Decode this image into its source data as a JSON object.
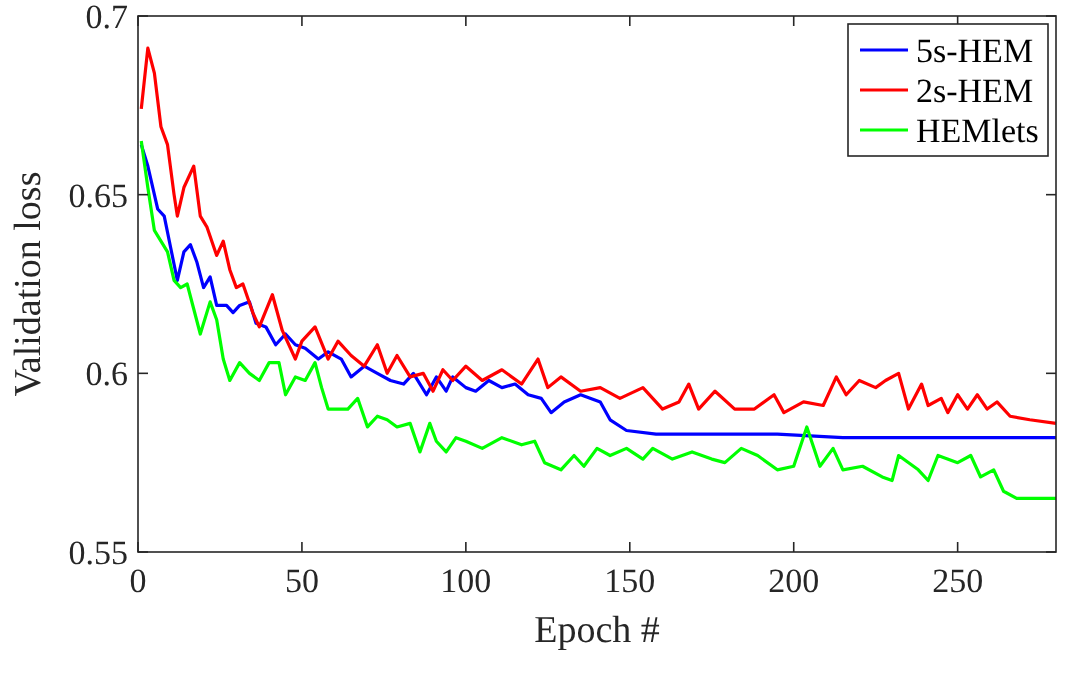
{
  "chart_data": {
    "type": "line",
    "xlabel": "Epoch #",
    "ylabel": "Validation loss",
    "xlim": [
      0,
      280
    ],
    "ylim": [
      0.55,
      0.7
    ],
    "xticks": [
      0,
      50,
      100,
      150,
      200,
      250
    ],
    "yticks": [
      0.55,
      0.6,
      0.65,
      0.7
    ],
    "legend": "top right",
    "grid": false,
    "line_style": "solid",
    "marker": "none",
    "series": [
      {
        "name": "5s-HEM",
        "color": "#0000ff",
        "x": [
          1,
          3,
          6,
          8,
          10,
          12,
          14,
          16,
          18,
          20,
          22,
          24,
          27,
          29,
          31,
          34,
          36,
          39,
          42,
          45,
          48,
          51,
          55,
          58,
          62,
          65,
          69,
          73,
          77,
          81,
          84,
          88,
          91,
          94,
          96,
          100,
          103,
          107,
          111,
          115,
          119,
          123,
          126,
          130,
          135,
          141,
          144,
          149,
          158,
          166,
          178,
          184,
          195,
          215,
          236,
          260,
          280
        ],
        "values": [
          0.664,
          0.658,
          0.646,
          0.644,
          0.635,
          0.626,
          0.634,
          0.636,
          0.631,
          0.624,
          0.627,
          0.619,
          0.619,
          0.617,
          0.619,
          0.62,
          0.614,
          0.613,
          0.608,
          0.611,
          0.608,
          0.607,
          0.604,
          0.606,
          0.604,
          0.599,
          0.602,
          0.6,
          0.598,
          0.597,
          0.6,
          0.594,
          0.599,
          0.595,
          0.599,
          0.596,
          0.595,
          0.598,
          0.596,
          0.597,
          0.594,
          0.593,
          0.589,
          0.592,
          0.594,
          0.592,
          0.587,
          0.584,
          0.583,
          0.583,
          0.583,
          0.583,
          0.583,
          0.582,
          0.582,
          0.582,
          0.582
        ]
      },
      {
        "name": "2s-HEM",
        "color": "#ff0000",
        "x": [
          1,
          3,
          5,
          7,
          9,
          11,
          12,
          14,
          17,
          19,
          21,
          24,
          26,
          28,
          30,
          32,
          35,
          37,
          41,
          44,
          48,
          50,
          54,
          58,
          61,
          65,
          69,
          73,
          76,
          79,
          83,
          87,
          90,
          93,
          96,
          100,
          105,
          111,
          117,
          122,
          125,
          129,
          135,
          141,
          147,
          154,
          160,
          165,
          168,
          171,
          176,
          182,
          188,
          194,
          197,
          203,
          209,
          213,
          216,
          220,
          225,
          228,
          232,
          235,
          239,
          241,
          245,
          247,
          250,
          253,
          256,
          259,
          262,
          266,
          272,
          280
        ],
        "values": [
          0.674,
          0.691,
          0.684,
          0.669,
          0.664,
          0.65,
          0.644,
          0.652,
          0.658,
          0.644,
          0.641,
          0.633,
          0.637,
          0.629,
          0.624,
          0.625,
          0.617,
          0.613,
          0.622,
          0.612,
          0.604,
          0.609,
          0.613,
          0.604,
          0.609,
          0.605,
          0.602,
          0.608,
          0.6,
          0.605,
          0.599,
          0.6,
          0.595,
          0.601,
          0.598,
          0.602,
          0.598,
          0.601,
          0.597,
          0.604,
          0.596,
          0.599,
          0.595,
          0.596,
          0.593,
          0.596,
          0.59,
          0.592,
          0.597,
          0.59,
          0.595,
          0.59,
          0.59,
          0.594,
          0.589,
          0.592,
          0.591,
          0.599,
          0.594,
          0.598,
          0.596,
          0.598,
          0.6,
          0.59,
          0.597,
          0.591,
          0.593,
          0.589,
          0.594,
          0.59,
          0.594,
          0.59,
          0.592,
          0.588,
          0.587,
          0.586
        ]
      },
      {
        "name": "HEMlets",
        "color": "#00ff00",
        "x": [
          1,
          3,
          5,
          7,
          9,
          11,
          13,
          15,
          17,
          19,
          22,
          24,
          26,
          28,
          31,
          34,
          37,
          40,
          43,
          45,
          48,
          51,
          54,
          56,
          58,
          61,
          64,
          67,
          70,
          73,
          76,
          79,
          83,
          86,
          89,
          91,
          94,
          97,
          100,
          105,
          111,
          117,
          121,
          124,
          129,
          133,
          136,
          140,
          144,
          149,
          154,
          157,
          163,
          169,
          175,
          179,
          184,
          189,
          195,
          200,
          204,
          208,
          212,
          215,
          221,
          227,
          230,
          232,
          238,
          241,
          244,
          250,
          254,
          257,
          261,
          264,
          268,
          275,
          280
        ],
        "values": [
          0.665,
          0.652,
          0.64,
          0.637,
          0.634,
          0.626,
          0.624,
          0.625,
          0.618,
          0.611,
          0.62,
          0.615,
          0.604,
          0.598,
          0.603,
          0.6,
          0.598,
          0.603,
          0.603,
          0.594,
          0.599,
          0.598,
          0.603,
          0.596,
          0.59,
          0.59,
          0.59,
          0.593,
          0.585,
          0.588,
          0.587,
          0.585,
          0.586,
          0.578,
          0.586,
          0.581,
          0.578,
          0.582,
          0.581,
          0.579,
          0.582,
          0.58,
          0.581,
          0.575,
          0.573,
          0.577,
          0.574,
          0.579,
          0.577,
          0.579,
          0.576,
          0.579,
          0.576,
          0.578,
          0.576,
          0.575,
          0.579,
          0.577,
          0.573,
          0.574,
          0.585,
          0.574,
          0.579,
          0.573,
          0.574,
          0.571,
          0.57,
          0.577,
          0.573,
          0.57,
          0.577,
          0.575,
          0.577,
          0.571,
          0.573,
          0.567,
          0.565,
          0.565,
          0.565
        ]
      }
    ]
  }
}
